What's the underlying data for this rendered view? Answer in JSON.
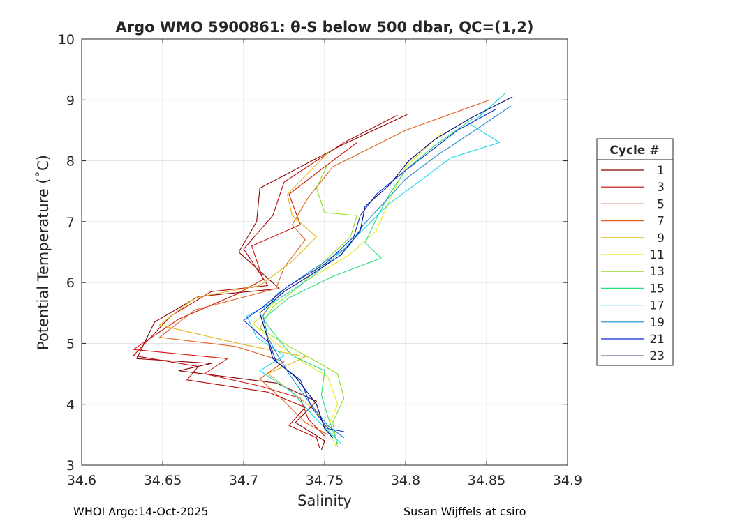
{
  "chart_data": {
    "type": "line",
    "title": "Argo WMO 5900861: θ-S below 500 dbar,  QC=(1,2)",
    "xlabel": "Salinity",
    "ylabel": "Potential Temperature (˚C)",
    "xlim": [
      34.6,
      34.9
    ],
    "ylim": [
      3,
      10
    ],
    "xticks": [
      "34.6",
      "34.65",
      "34.7",
      "34.75",
      "34.8",
      "34.85",
      "34.9"
    ],
    "yticks": [
      "3",
      "4",
      "5",
      "6",
      "7",
      "8",
      "9",
      "10"
    ],
    "grid": true,
    "legend_title": "Cycle #",
    "legend_position": "outside-right",
    "series": [
      {
        "name": "1",
        "color": "#8b0000",
        "points": [
          [
            34.801,
            8.76
          ],
          [
            34.76,
            8.25
          ],
          [
            34.71,
            7.55
          ],
          [
            34.708,
            7.0
          ],
          [
            34.697,
            6.5
          ],
          [
            34.722,
            5.9
          ],
          [
            34.672,
            5.77
          ],
          [
            34.645,
            5.35
          ],
          [
            34.634,
            4.75
          ],
          [
            34.68,
            4.67
          ],
          [
            34.66,
            4.55
          ],
          [
            34.72,
            4.35
          ],
          [
            34.745,
            4.05
          ],
          [
            34.732,
            3.7
          ],
          [
            34.75,
            3.4
          ],
          [
            34.748,
            3.25
          ]
        ]
      },
      {
        "name": "3",
        "color": "#b80808",
        "points": [
          [
            34.795,
            8.75
          ],
          [
            34.762,
            8.3
          ],
          [
            34.725,
            7.65
          ],
          [
            34.718,
            7.1
          ],
          [
            34.7,
            6.55
          ],
          [
            34.715,
            5.95
          ],
          [
            34.68,
            5.85
          ],
          [
            34.655,
            5.45
          ],
          [
            34.632,
            4.8
          ],
          [
            34.672,
            4.62
          ],
          [
            34.665,
            4.4
          ],
          [
            34.715,
            4.2
          ],
          [
            34.738,
            3.95
          ],
          [
            34.728,
            3.65
          ],
          [
            34.745,
            3.45
          ],
          [
            34.747,
            3.28
          ]
        ]
      },
      {
        "name": "5",
        "color": "#d0160e",
        "points": [
          [
            34.77,
            8.3
          ],
          [
            34.75,
            7.9
          ],
          [
            34.728,
            7.45
          ],
          [
            34.735,
            6.95
          ],
          [
            34.705,
            6.6
          ],
          [
            34.712,
            6.05
          ],
          [
            34.695,
            5.8
          ],
          [
            34.66,
            5.4
          ],
          [
            34.632,
            4.9
          ],
          [
            34.69,
            4.75
          ],
          [
            34.676,
            4.5
          ],
          [
            34.71,
            4.3
          ],
          [
            34.735,
            4.1
          ],
          [
            34.74,
            3.75
          ],
          [
            34.75,
            3.48
          ]
        ]
      },
      {
        "name": "7",
        "color": "#e2621e",
        "points": [
          [
            34.852,
            9.0
          ],
          [
            34.8,
            8.5
          ],
          [
            34.755,
            7.9
          ],
          [
            34.74,
            7.4
          ],
          [
            34.73,
            6.95
          ],
          [
            34.738,
            6.7
          ],
          [
            34.725,
            6.25
          ],
          [
            34.72,
            5.9
          ],
          [
            34.67,
            5.55
          ],
          [
            34.648,
            5.1
          ],
          [
            34.695,
            4.95
          ],
          [
            34.725,
            4.7
          ],
          [
            34.71,
            4.42
          ],
          [
            34.725,
            4.05
          ],
          [
            34.738,
            3.7
          ],
          [
            34.752,
            3.5
          ]
        ]
      },
      {
        "name": "9",
        "color": "#e3b818",
        "points": [
          [
            34.753,
            8.16
          ],
          [
            34.727,
            7.45
          ],
          [
            34.73,
            7.1
          ],
          [
            34.745,
            6.75
          ],
          [
            34.73,
            6.35
          ],
          [
            34.71,
            5.95
          ],
          [
            34.67,
            5.75
          ],
          [
            34.648,
            5.3
          ],
          [
            34.7,
            4.98
          ],
          [
            34.738,
            4.78
          ],
          [
            34.715,
            4.5
          ],
          [
            34.73,
            4.2
          ],
          [
            34.745,
            3.88
          ],
          [
            34.752,
            3.55
          ]
        ]
      },
      {
        "name": "11",
        "color": "#e8ec1a",
        "points": [
          [
            34.822,
            8.45
          ],
          [
            34.8,
            7.9
          ],
          [
            34.79,
            7.35
          ],
          [
            34.782,
            6.85
          ],
          [
            34.765,
            6.45
          ],
          [
            34.74,
            6.05
          ],
          [
            34.72,
            5.7
          ],
          [
            34.706,
            5.32
          ],
          [
            34.72,
            5.0
          ],
          [
            34.735,
            4.72
          ],
          [
            34.752,
            4.45
          ],
          [
            34.758,
            4.0
          ],
          [
            34.752,
            3.62
          ],
          [
            34.757,
            3.3
          ]
        ]
      },
      {
        "name": "13",
        "color": "#8ee024",
        "points": [
          [
            34.752,
            7.95
          ],
          [
            34.745,
            7.55
          ],
          [
            34.75,
            7.15
          ],
          [
            34.77,
            7.1
          ],
          [
            34.766,
            6.75
          ],
          [
            34.75,
            6.35
          ],
          [
            34.735,
            5.95
          ],
          [
            34.718,
            5.6
          ],
          [
            34.71,
            5.25
          ],
          [
            34.728,
            4.95
          ],
          [
            34.745,
            4.7
          ],
          [
            34.758,
            4.5
          ],
          [
            34.762,
            4.1
          ],
          [
            34.755,
            3.7
          ],
          [
            34.758,
            3.3
          ]
        ]
      },
      {
        "name": "15",
        "color": "#26e078",
        "points": [
          [
            34.842,
            8.7
          ],
          [
            34.818,
            8.25
          ],
          [
            34.8,
            7.85
          ],
          [
            34.79,
            7.45
          ],
          [
            34.782,
            7.05
          ],
          [
            34.775,
            6.65
          ],
          [
            34.785,
            6.4
          ],
          [
            34.755,
            6.1
          ],
          [
            34.728,
            5.75
          ],
          [
            34.712,
            5.4
          ],
          [
            34.722,
            5.05
          ],
          [
            34.73,
            4.8
          ],
          [
            34.75,
            4.55
          ],
          [
            34.748,
            4.15
          ],
          [
            34.752,
            3.8
          ],
          [
            34.758,
            3.35
          ]
        ]
      },
      {
        "name": "17",
        "color": "#1ad8e8",
        "points": [
          [
            34.862,
            9.12
          ],
          [
            34.84,
            8.6
          ],
          [
            34.858,
            8.3
          ],
          [
            34.828,
            8.05
          ],
          [
            34.808,
            7.65
          ],
          [
            34.79,
            7.3
          ],
          [
            34.775,
            6.9
          ],
          [
            34.76,
            6.5
          ],
          [
            34.74,
            6.05
          ],
          [
            34.72,
            5.7
          ],
          [
            34.702,
            5.45
          ],
          [
            34.708,
            5.1
          ],
          [
            34.725,
            4.8
          ],
          [
            34.71,
            4.55
          ],
          [
            34.73,
            4.2
          ],
          [
            34.745,
            3.75
          ],
          [
            34.76,
            3.36
          ]
        ]
      },
      {
        "name": "19",
        "color": "#1a8ad0",
        "points": [
          [
            34.865,
            8.9
          ],
          [
            34.84,
            8.45
          ],
          [
            34.82,
            8.1
          ],
          [
            34.8,
            7.7
          ],
          [
            34.788,
            7.35
          ],
          [
            34.774,
            6.95
          ],
          [
            34.765,
            6.6
          ],
          [
            34.742,
            6.2
          ],
          [
            34.72,
            5.8
          ],
          [
            34.712,
            5.45
          ],
          [
            34.715,
            5.1
          ],
          [
            34.72,
            4.85
          ],
          [
            34.728,
            4.5
          ],
          [
            34.74,
            4.05
          ],
          [
            34.752,
            3.65
          ],
          [
            34.762,
            3.45
          ]
        ]
      },
      {
        "name": "21",
        "color": "#0f2ad8",
        "points": [
          [
            34.856,
            8.85
          ],
          [
            34.832,
            8.5
          ],
          [
            34.815,
            8.15
          ],
          [
            34.798,
            7.8
          ],
          [
            34.782,
            7.45
          ],
          [
            34.772,
            7.1
          ],
          [
            34.768,
            6.75
          ],
          [
            34.75,
            6.3
          ],
          [
            34.728,
            5.95
          ],
          [
            34.712,
            5.6
          ],
          [
            34.7,
            5.38
          ],
          [
            34.716,
            5.0
          ],
          [
            34.72,
            4.7
          ],
          [
            34.735,
            4.4
          ],
          [
            34.742,
            3.95
          ],
          [
            34.752,
            3.6
          ],
          [
            34.762,
            3.55
          ]
        ]
      },
      {
        "name": "23",
        "color": "#000a78",
        "points": [
          [
            34.866,
            9.05
          ],
          [
            34.84,
            8.7
          ],
          [
            34.818,
            8.35
          ],
          [
            34.802,
            8.0
          ],
          [
            34.79,
            7.6
          ],
          [
            34.775,
            7.25
          ],
          [
            34.772,
            6.85
          ],
          [
            34.76,
            6.45
          ],
          [
            34.74,
            6.1
          ],
          [
            34.725,
            5.85
          ],
          [
            34.71,
            5.5
          ],
          [
            34.714,
            5.15
          ],
          [
            34.718,
            4.75
          ],
          [
            34.732,
            4.45
          ],
          [
            34.745,
            4.0
          ],
          [
            34.75,
            3.6
          ],
          [
            34.755,
            3.45
          ]
        ]
      }
    ]
  },
  "footer": {
    "left": "WHOI Argo:14-Oct-2025",
    "right": "Susan Wijffels at csiro"
  }
}
